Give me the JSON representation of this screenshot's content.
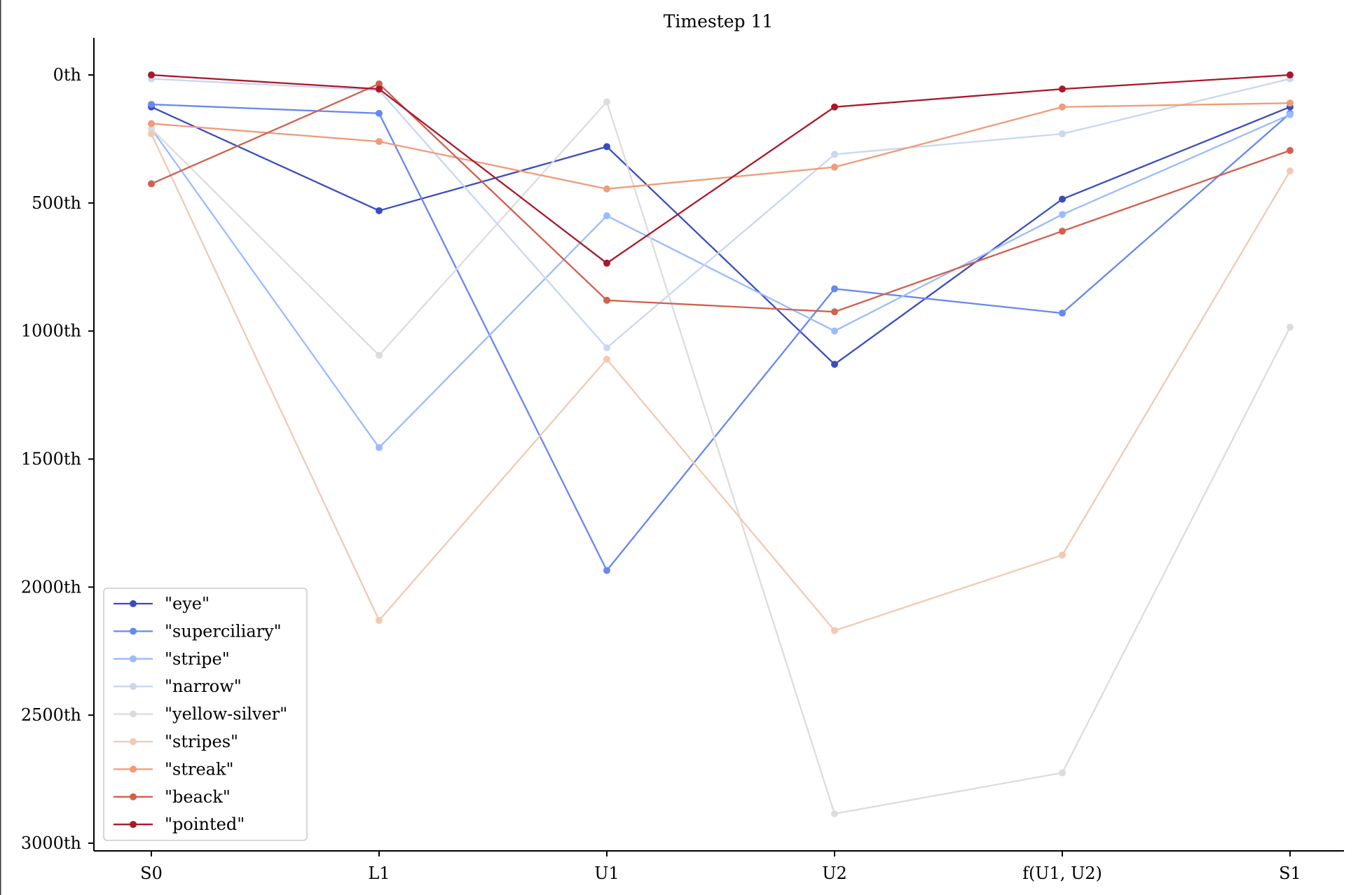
{
  "chart_data": {
    "type": "line",
    "title": "Timestep 11",
    "xlabel": "",
    "ylabel": "",
    "categories": [
      "S0",
      "L1",
      "U1",
      "U2",
      "f(U1, U2)",
      "S1"
    ],
    "y_ticks": [
      0,
      500,
      1000,
      1500,
      2000,
      2500,
      3000
    ],
    "y_tick_labels": [
      "0th",
      "500th",
      "1000th",
      "1500th",
      "2000th",
      "2500th",
      "3000th"
    ],
    "ylim": [
      3030,
      -145
    ],
    "y_inverted": true,
    "grid": false,
    "legend_position": "lower-left",
    "series": [
      {
        "name": "\"eye\"",
        "color": "#3b4cc0",
        "values": [
          125,
          530,
          280,
          1130,
          485,
          125
        ]
      },
      {
        "name": "\"superciliary\"",
        "color": "#6788ee",
        "values": [
          115,
          150,
          1935,
          835,
          930,
          150
        ]
      },
      {
        "name": "\"stripe\"",
        "color": "#9abbff",
        "values": [
          210,
          1455,
          550,
          1000,
          545,
          155
        ]
      },
      {
        "name": "\"narrow\"",
        "color": "#c9d7f0",
        "values": [
          15,
          60,
          1065,
          310,
          230,
          15
        ]
      },
      {
        "name": "\"yellow-silver\"",
        "color": "#dddcdc",
        "values": [
          210,
          1095,
          105,
          2885,
          2725,
          985
        ]
      },
      {
        "name": "\"stripes\"",
        "color": "#f2c9b4",
        "values": [
          230,
          2130,
          1110,
          2170,
          1875,
          375
        ]
      },
      {
        "name": "\"streak\"",
        "color": "#f09b7a",
        "values": [
          190,
          260,
          445,
          360,
          125,
          110
        ]
      },
      {
        "name": "\"beack\"",
        "color": "#d1604e",
        "values": [
          425,
          35,
          880,
          925,
          610,
          295
        ]
      },
      {
        "name": "\"pointed\"",
        "color": "#a8182b",
        "values": [
          0,
          55,
          735,
          125,
          55,
          0
        ]
      }
    ]
  }
}
